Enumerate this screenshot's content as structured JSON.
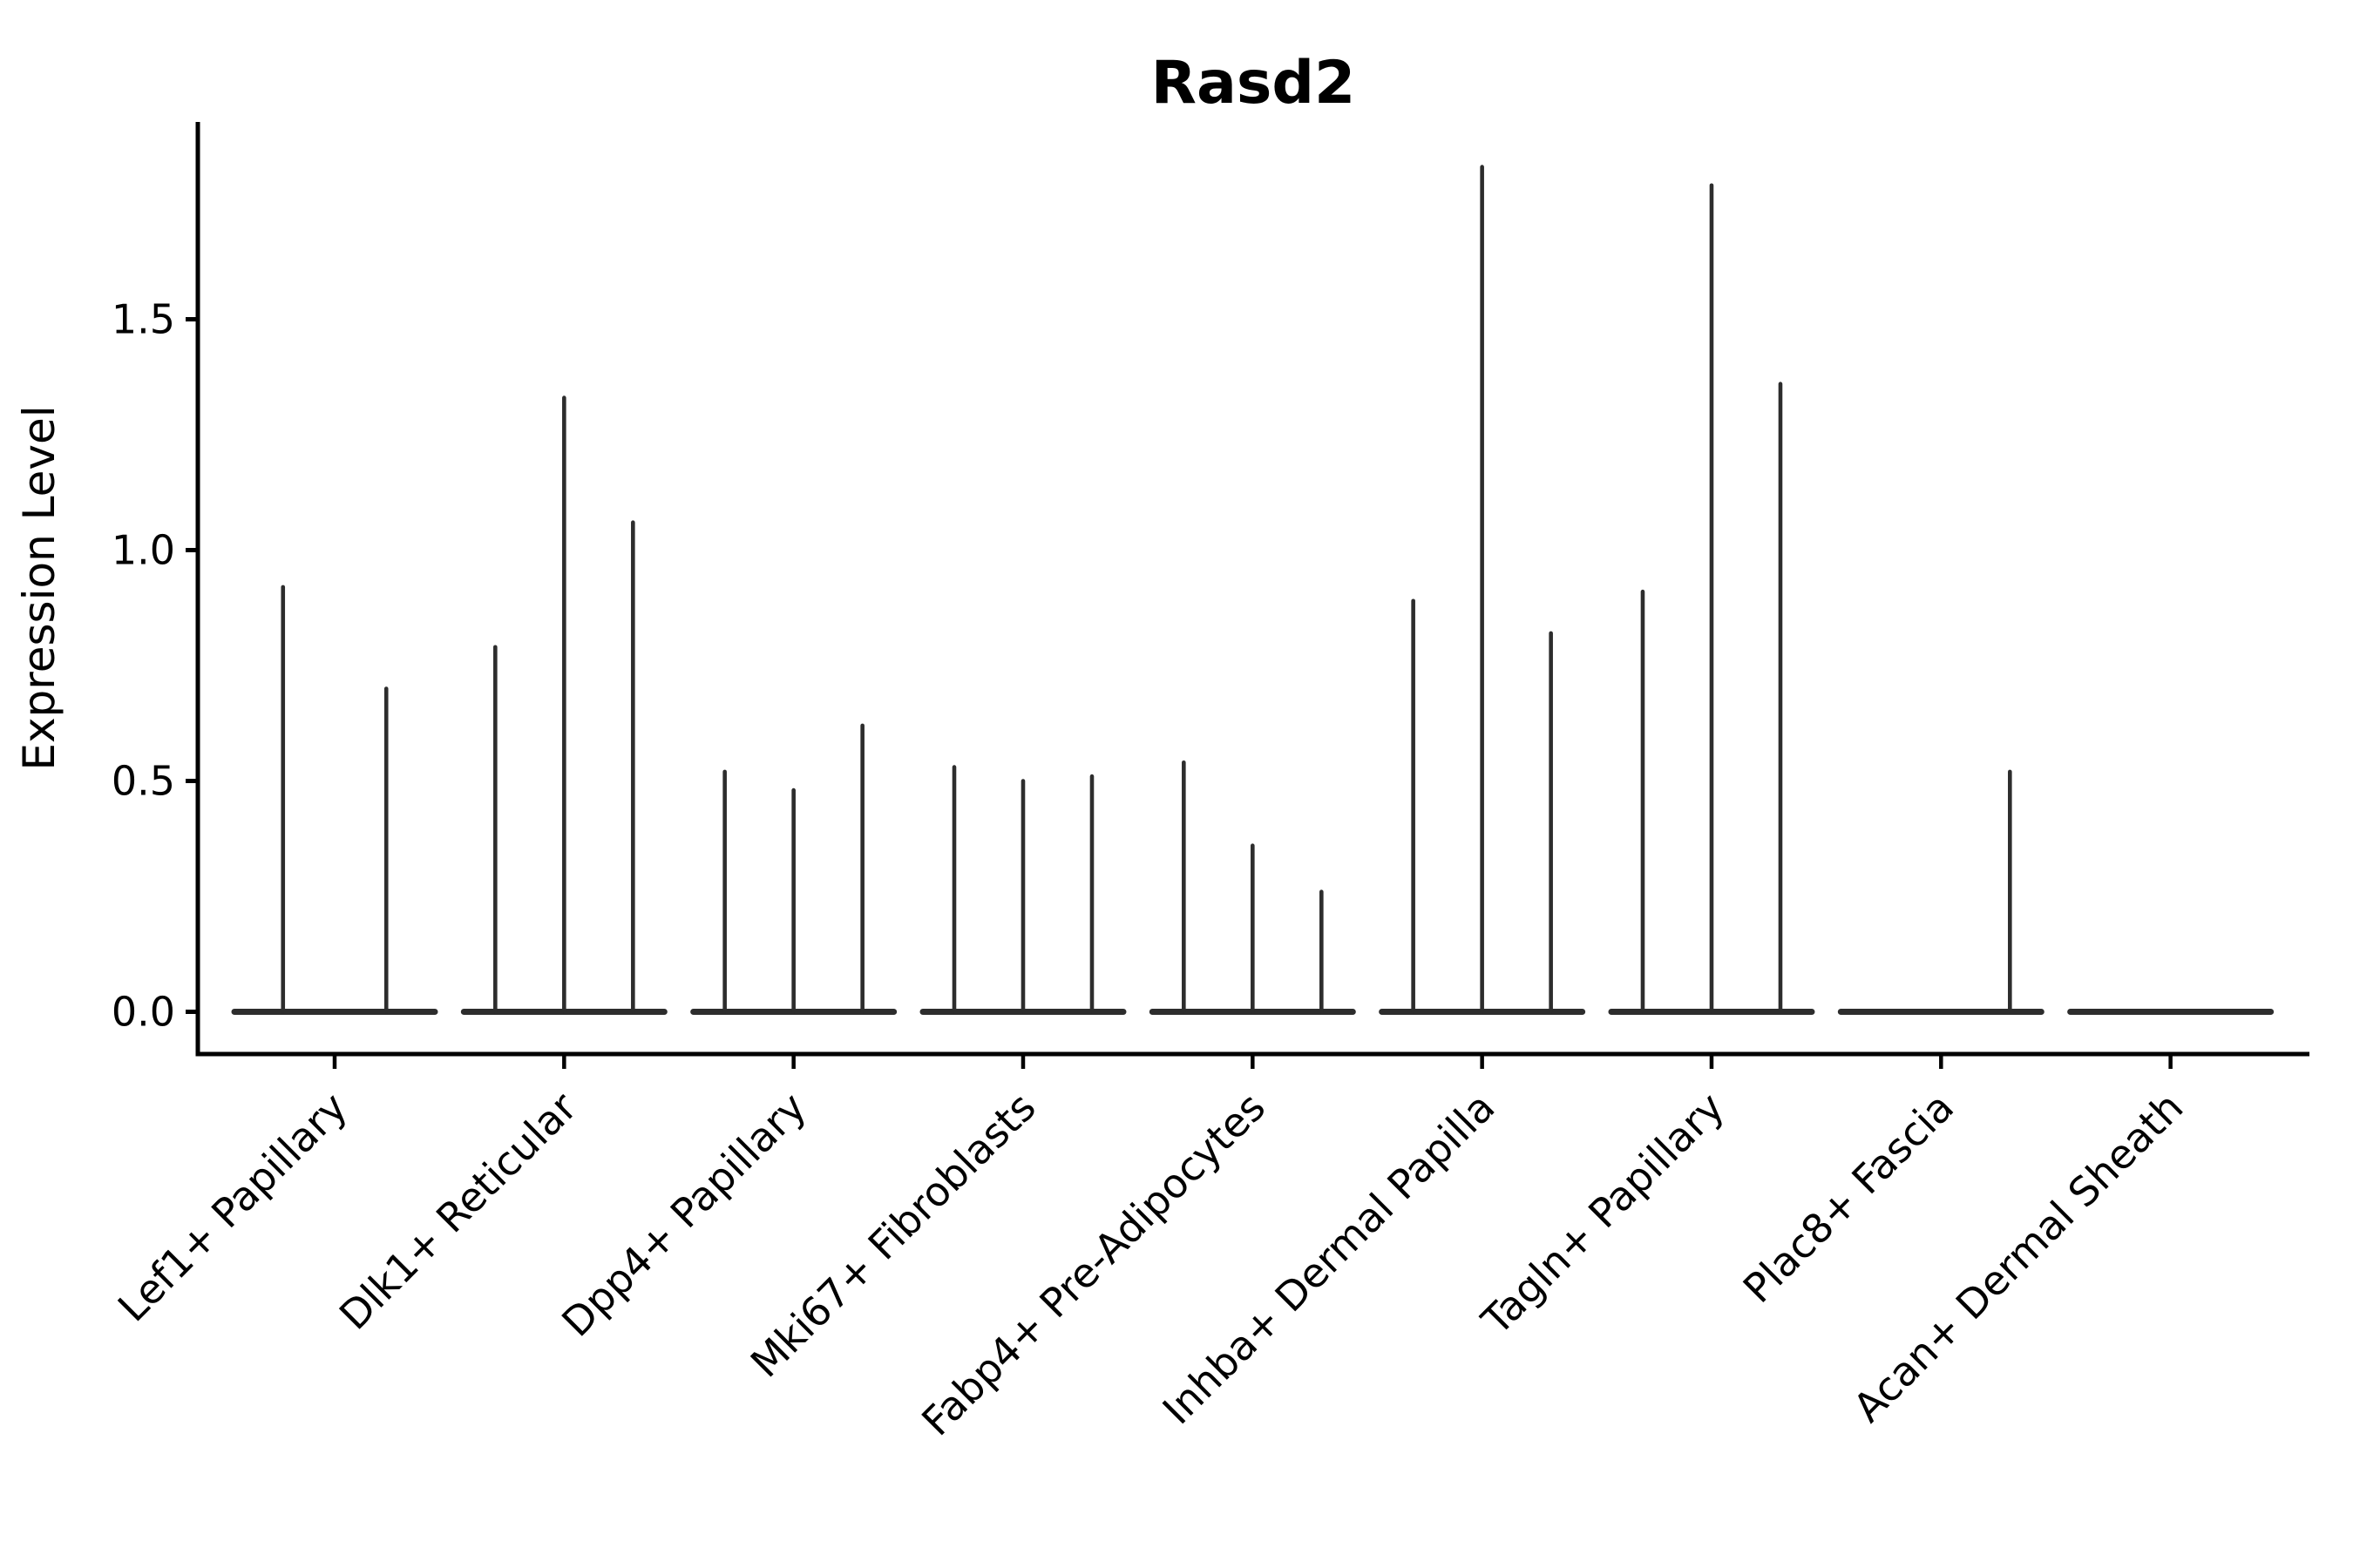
{
  "chart_data": {
    "type": "violin",
    "title": "Rasd2",
    "ylabel": "Expression Level",
    "xlabel": "",
    "grid": false,
    "legend": "none",
    "ylim": [
      -0.09,
      1.93
    ],
    "yticks": [
      "0.0",
      "0.5",
      "1.0",
      "1.5"
    ],
    "description": "Grouped violin plot of gene expression; each category shows narrow zero-inflated violins (flat base at 0 with thin spikes up to the max expression value).",
    "categories": [
      "Lef1+ Papillary",
      "Dlk1+ Reticular",
      "Dpp4+ Papillary",
      "Mki67+ Fibroblasts",
      "Fabp4+ Pre-Adipocytes",
      "Inhba+ Dermal Papilla",
      "Tagln+ Papillary",
      "Plac8+ Fascia",
      "Acan+ Dermal Sheath"
    ],
    "groups": [
      {
        "category": "Lef1+ Papillary",
        "violin_max_values": [
          0.92,
          0.7
        ]
      },
      {
        "category": "Dlk1+ Reticular",
        "violin_max_values": [
          0.79,
          1.33,
          1.06
        ]
      },
      {
        "category": "Dpp4+ Papillary",
        "violin_max_values": [
          0.52,
          0.48,
          0.62
        ]
      },
      {
        "category": "Mki67+ Fibroblasts",
        "violin_max_values": [
          0.53,
          0.5,
          0.51
        ]
      },
      {
        "category": "Fabp4+ Pre-Adipocytes",
        "violin_max_values": [
          0.54,
          0.36,
          0.26
        ]
      },
      {
        "category": "Inhba+ Dermal Papilla",
        "violin_max_values": [
          0.89,
          1.83,
          0.82
        ]
      },
      {
        "category": "Tagln+ Papillary",
        "violin_max_values": [
          0.91,
          1.79,
          1.36
        ]
      },
      {
        "category": "Plac8+ Fascia",
        "violin_max_values": [
          0.0,
          0.0,
          0.52
        ]
      },
      {
        "category": "Acan+ Dermal Sheath",
        "violin_max_values": [
          0.0,
          0.0,
          0.0
        ]
      }
    ],
    "colors": {
      "violin": "#2d2d2d",
      "axis": "#000000",
      "text": "#000000",
      "background": "#ffffff"
    }
  }
}
